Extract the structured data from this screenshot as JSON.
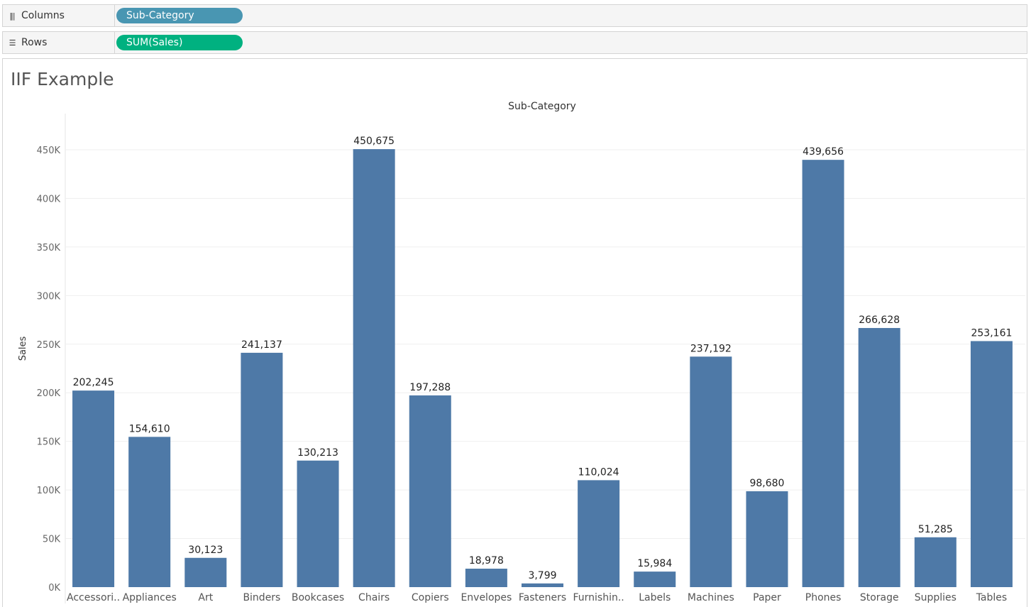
{
  "shelves": {
    "columns": {
      "label": "Columns",
      "pill": "Sub-Category",
      "pill_color": "#4996b2"
    },
    "rows": {
      "label": "Rows",
      "pill": "SUM(Sales)",
      "pill_color": "#00b180"
    }
  },
  "sheet": {
    "title": "IIF Example"
  },
  "chart_data": {
    "type": "bar",
    "title": "",
    "column_header": "Sub-Category",
    "xlabel": "",
    "ylabel": "Sales",
    "categories": [
      "Accessori..",
      "Appliances",
      "Art",
      "Binders",
      "Bookcases",
      "Chairs",
      "Copiers",
      "Envelopes",
      "Fasteners",
      "Furnishin..",
      "Labels",
      "Machines",
      "Paper",
      "Phones",
      "Storage",
      "Supplies",
      "Tables"
    ],
    "values": [
      202245,
      154610,
      30123,
      241137,
      130213,
      450675,
      197288,
      18978,
      3799,
      110024,
      15984,
      237192,
      98680,
      439656,
      266628,
      51285,
      253161
    ],
    "data_labels": [
      "202,245",
      "154,610",
      "30,123",
      "241,137",
      "130,213",
      "450,675",
      "197,288",
      "18,978",
      "3,799",
      "110,024",
      "15,984",
      "237,192",
      "98,680",
      "439,656",
      "266,628",
      "51,285",
      "253,161"
    ],
    "ylim": [
      0,
      450000
    ],
    "yticks": [
      0,
      50000,
      100000,
      150000,
      200000,
      250000,
      300000,
      350000,
      400000,
      450000
    ],
    "ytick_labels": [
      "0K",
      "50K",
      "100K",
      "150K",
      "200K",
      "250K",
      "300K",
      "350K",
      "400K",
      "450K"
    ],
    "bar_color": "#4e79a7",
    "grid": true
  }
}
